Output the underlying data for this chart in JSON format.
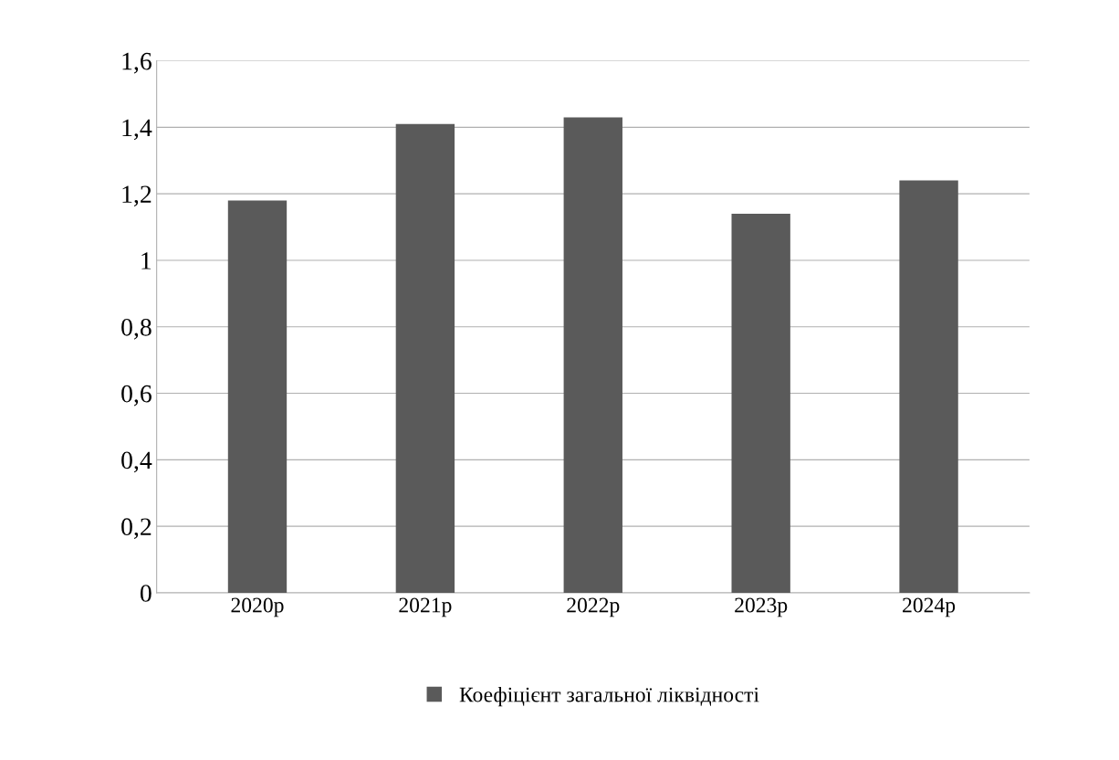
{
  "chart_data": {
    "type": "bar",
    "categories": [
      "2020р",
      "2021р",
      "2022р",
      "2023р",
      "2024р"
    ],
    "series": [
      {
        "name": "Коефіцієнт загальної ліквідності",
        "color": "#5a5a5a",
        "values": [
          1.18,
          1.41,
          1.43,
          1.14,
          1.24
        ]
      }
    ],
    "ylim": [
      0,
      1.6
    ],
    "yticks": [
      0,
      {
        "value": 0.2,
        "label": "0,2"
      },
      {
        "value": 0.4,
        "label": "0,4"
      },
      {
        "value": 0.6,
        "label": "0,6"
      },
      {
        "value": 0.8,
        "label": "0,8"
      },
      1,
      {
        "value": 1.2,
        "label": "1,2"
      },
      {
        "value": 1.4,
        "label": "1,4"
      },
      {
        "value": 1.6,
        "label": "1,6"
      }
    ],
    "grid": "y",
    "legend": "bottom"
  }
}
